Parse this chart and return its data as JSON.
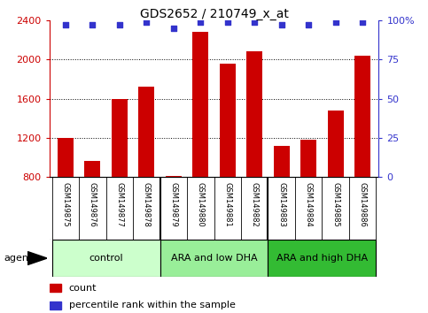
{
  "title": "GDS2652 / 210749_x_at",
  "samples": [
    "GSM149875",
    "GSM149876",
    "GSM149877",
    "GSM149878",
    "GSM149879",
    "GSM149880",
    "GSM149881",
    "GSM149882",
    "GSM149883",
    "GSM149884",
    "GSM149885",
    "GSM149886"
  ],
  "counts": [
    1200,
    960,
    1600,
    1720,
    810,
    2280,
    1960,
    2080,
    1120,
    1180,
    1480,
    2040
  ],
  "percentile_ranks": [
    97,
    97,
    97,
    99,
    95,
    99,
    99,
    99,
    97,
    97,
    99,
    99
  ],
  "bar_color": "#cc0000",
  "dot_color": "#3333cc",
  "ylim_left": [
    800,
    2400
  ],
  "ylim_right": [
    0,
    100
  ],
  "yticks_left": [
    800,
    1200,
    1600,
    2000,
    2400
  ],
  "yticks_right": [
    0,
    25,
    50,
    75,
    100
  ],
  "groups": [
    {
      "label": "control",
      "start": 0,
      "end": 4,
      "color": "#ccffcc"
    },
    {
      "label": "ARA and low DHA",
      "start": 4,
      "end": 8,
      "color": "#99ee99"
    },
    {
      "label": "ARA and high DHA",
      "start": 8,
      "end": 12,
      "color": "#33bb33"
    }
  ],
  "agent_label": "agent",
  "legend_count_label": "count",
  "legend_pct_label": "percentile rank within the sample",
  "tick_label_area_color": "#cccccc",
  "left_axis_color": "#cc0000",
  "right_axis_color": "#3333cc",
  "grid_yticks": [
    1200,
    1600,
    2000
  ]
}
